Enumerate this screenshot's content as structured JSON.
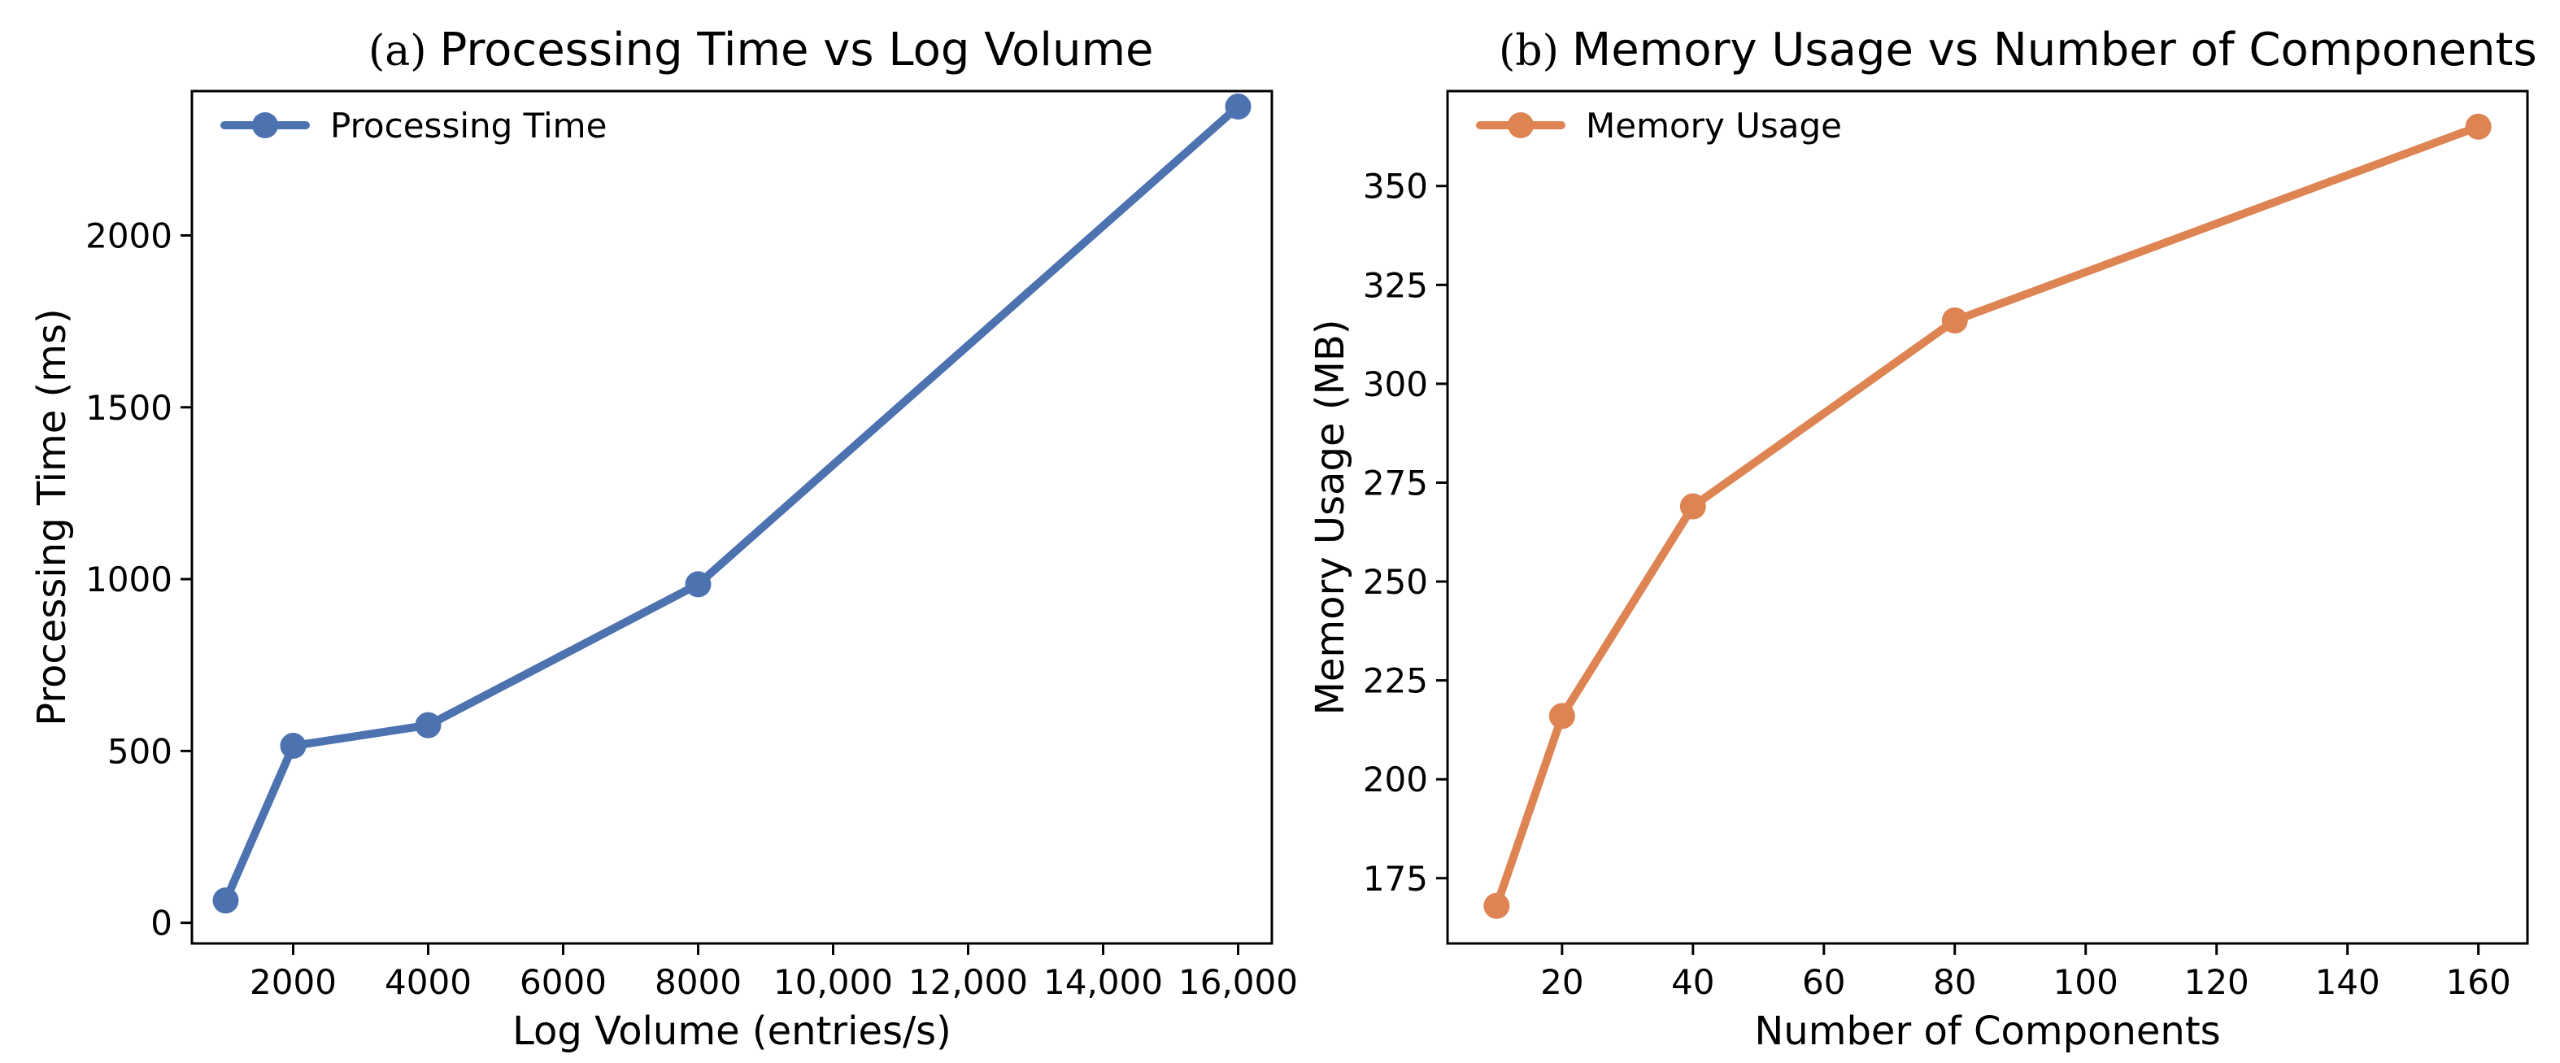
{
  "chart_data": [
    {
      "type": "line",
      "panel": "(a)",
      "title": "Processing Time vs Log Volume",
      "xlabel": "Log Volume (entries/s)",
      "ylabel": "Processing Time (ms)",
      "xlim": [
        500,
        16500
      ],
      "ylim": [
        -60,
        2420
      ],
      "xticks": [
        2000,
        4000,
        6000,
        8000,
        10000,
        12000,
        14000,
        16000
      ],
      "xtick_labels": [
        "2000",
        "4000",
        "6000",
        "8000",
        "10,000",
        "12,000",
        "14,000",
        "16,000"
      ],
      "yticks": [
        0,
        500,
        1000,
        1500,
        2000
      ],
      "ytick_labels": [
        "0",
        "500",
        "1000",
        "1500",
        "2000"
      ],
      "legend": "top-left",
      "grid": false,
      "series": [
        {
          "name": "Processing Time",
          "color": "#4C72B0",
          "x": [
            1000,
            2000,
            4000,
            8000,
            16000
          ],
          "y": [
            65,
            515,
            575,
            985,
            2375
          ]
        }
      ]
    },
    {
      "type": "line",
      "panel": "(b)",
      "title": "Memory Usage vs Number of Components",
      "xlabel": "Number of Components",
      "ylabel": "Memory Usage (MB)",
      "xlim": [
        2.5,
        167.5
      ],
      "ylim": [
        158.5,
        374
      ],
      "xticks": [
        20,
        40,
        60,
        80,
        100,
        120,
        140,
        160
      ],
      "xtick_labels": [
        "20",
        "40",
        "60",
        "80",
        "100",
        "120",
        "140",
        "160"
      ],
      "yticks": [
        175,
        200,
        225,
        250,
        275,
        300,
        325,
        350
      ],
      "ytick_labels": [
        "175",
        "200",
        "225",
        "250",
        "275",
        "300",
        "325",
        "350"
      ],
      "legend": "top-left",
      "grid": false,
      "series": [
        {
          "name": "Memory Usage",
          "color": "#DD8452",
          "x": [
            10,
            20,
            40,
            80,
            160
          ],
          "y": [
            168,
            216,
            269,
            316,
            365
          ]
        }
      ]
    }
  ]
}
